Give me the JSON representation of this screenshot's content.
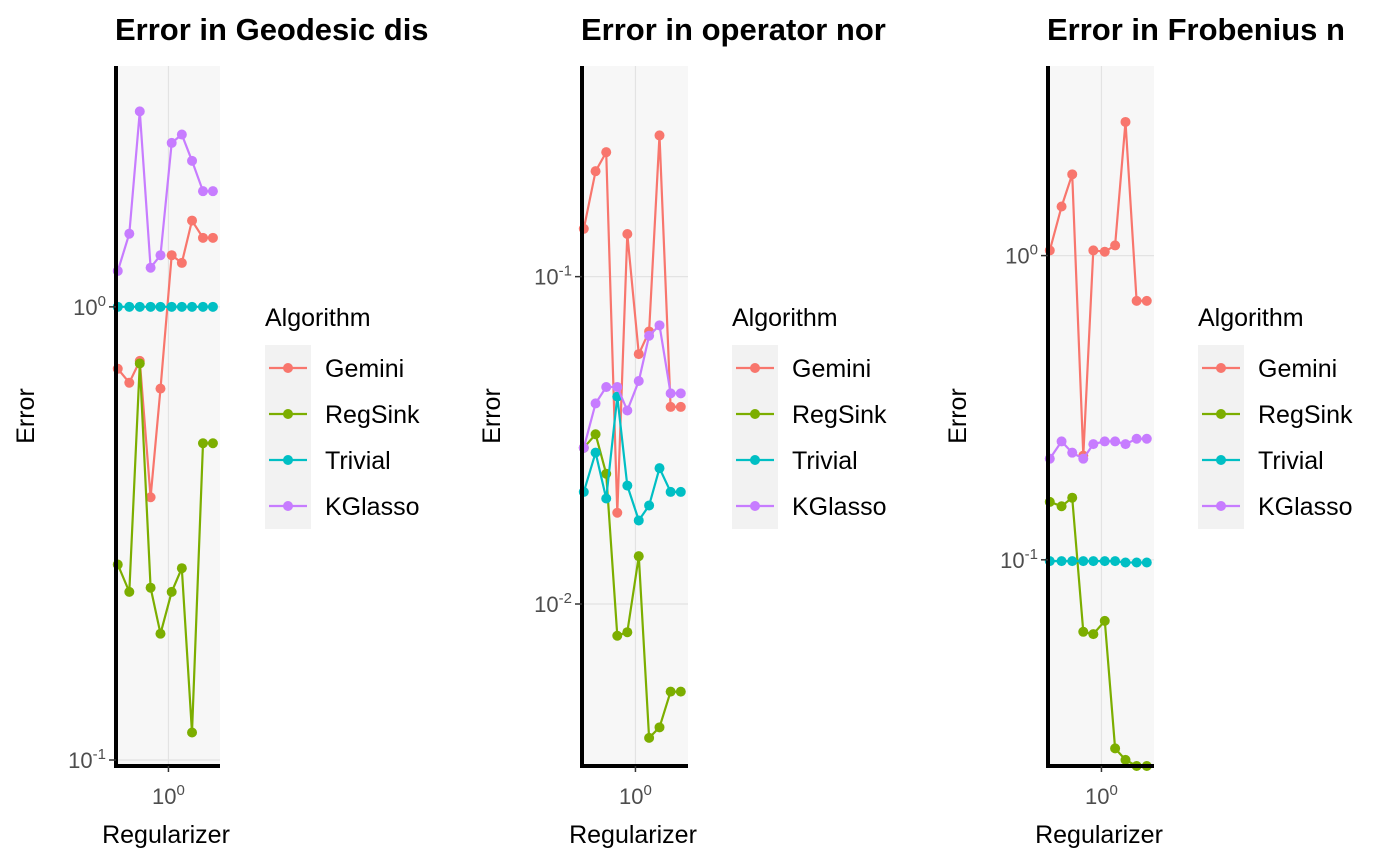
{
  "chart_data": [
    {
      "type": "line",
      "title": "Error in Geodesic dis",
      "xlabel": "Regularizer",
      "ylabel": "Error",
      "x_scale": "log",
      "y_scale": "log",
      "x_ticks": [
        {
          "value": 1,
          "label": "10",
          "exp": "0"
        }
      ],
      "y_ticks": [
        {
          "value": 0.1,
          "label": "10",
          "exp": "-1"
        },
        {
          "value": 1,
          "label": "10",
          "exp": "0"
        }
      ],
      "xlim": [
        0.62,
        1.6
      ],
      "ylim": [
        0.097,
        3.4
      ],
      "x": [
        0.63,
        0.7,
        0.77,
        0.85,
        0.93,
        1.03,
        1.13,
        1.24,
        1.37,
        1.5
      ],
      "series": [
        {
          "name": "Gemini",
          "values": [
            0.73,
            0.68,
            0.76,
            0.38,
            0.66,
            1.3,
            1.25,
            1.55,
            1.42,
            1.42
          ]
        },
        {
          "name": "RegSink",
          "values": [
            0.27,
            0.235,
            0.75,
            0.24,
            0.19,
            0.235,
            0.265,
            0.115,
            0.5,
            0.5
          ]
        },
        {
          "name": "Trivial",
          "values": [
            1.0,
            1.0,
            1.0,
            1.0,
            1.0,
            1.0,
            1.0,
            1.0,
            1.0,
            1.0
          ]
        },
        {
          "name": "KGlasso",
          "values": [
            1.2,
            1.45,
            2.7,
            1.22,
            1.3,
            2.3,
            2.4,
            2.1,
            1.8,
            1.8
          ]
        }
      ]
    },
    {
      "type": "line",
      "title": "Error in operator nor",
      "xlabel": "Regularizer",
      "ylabel": "Error",
      "x_scale": "log",
      "y_scale": "log",
      "x_ticks": [
        {
          "value": 1,
          "label": "10",
          "exp": "0"
        }
      ],
      "y_ticks": [
        {
          "value": 0.01,
          "label": "10",
          "exp": "-2"
        },
        {
          "value": 0.1,
          "label": "10",
          "exp": "-1"
        }
      ],
      "xlim": [
        0.62,
        1.6
      ],
      "ylim": [
        0.0032,
        0.44
      ],
      "x": [
        0.63,
        0.7,
        0.77,
        0.85,
        0.93,
        1.03,
        1.13,
        1.24,
        1.37,
        1.5
      ],
      "series": [
        {
          "name": "Gemini",
          "values": [
            0.14,
            0.21,
            0.24,
            0.019,
            0.135,
            0.058,
            0.068,
            0.27,
            0.04,
            0.04
          ]
        },
        {
          "name": "RegSink",
          "values": [
            0.03,
            0.033,
            0.025,
            0.008,
            0.0082,
            0.014,
            0.0039,
            0.0042,
            0.0054,
            0.0054
          ]
        },
        {
          "name": "Trivial",
          "values": [
            0.022,
            0.029,
            0.021,
            0.043,
            0.023,
            0.018,
            0.02,
            0.026,
            0.022,
            0.022
          ]
        },
        {
          "name": "KGlasso",
          "values": [
            0.03,
            0.041,
            0.046,
            0.046,
            0.039,
            0.048,
            0.066,
            0.071,
            0.044,
            0.044
          ]
        }
      ]
    },
    {
      "type": "line",
      "title": "Error in Frobenius n",
      "xlabel": "Regularizer",
      "ylabel": "Error",
      "x_scale": "log",
      "y_scale": "log",
      "x_ticks": [
        {
          "value": 1,
          "label": "10",
          "exp": "0"
        }
      ],
      "y_ticks": [
        {
          "value": 0.1,
          "label": "10",
          "exp": "-1"
        },
        {
          "value": 1,
          "label": "10",
          "exp": "0"
        }
      ],
      "xlim": [
        0.62,
        1.6
      ],
      "ylim": [
        0.021,
        4.2
      ],
      "x": [
        0.63,
        0.7,
        0.77,
        0.85,
        0.93,
        1.03,
        1.13,
        1.24,
        1.37,
        1.5
      ],
      "series": [
        {
          "name": "Gemini",
          "values": [
            1.04,
            1.45,
            1.85,
            0.22,
            1.04,
            1.03,
            1.08,
            2.75,
            0.71,
            0.71
          ]
        },
        {
          "name": "RegSink",
          "values": [
            0.155,
            0.15,
            0.16,
            0.058,
            0.057,
            0.063,
            0.024,
            0.022,
            0.021,
            0.021
          ]
        },
        {
          "name": "Trivial",
          "values": [
            0.099,
            0.099,
            0.099,
            0.099,
            0.099,
            0.099,
            0.099,
            0.098,
            0.098,
            0.098
          ]
        },
        {
          "name": "KGlasso",
          "values": [
            0.215,
            0.245,
            0.225,
            0.215,
            0.24,
            0.245,
            0.245,
            0.24,
            0.25,
            0.25
          ]
        }
      ]
    }
  ],
  "legend": {
    "title": "Algorithm",
    "entries": [
      "Gemini",
      "RegSink",
      "Trivial",
      "KGlasso"
    ]
  },
  "colors": {
    "Gemini": "#F8766D",
    "RegSink": "#7CAE00",
    "Trivial": "#00BFC4",
    "KGlasso": "#C77CFF",
    "panel_bg": "#F7F7F7",
    "grid": "#E3E3E3",
    "legend_key_bg": "#F2F2F2",
    "axis": "#000000"
  }
}
